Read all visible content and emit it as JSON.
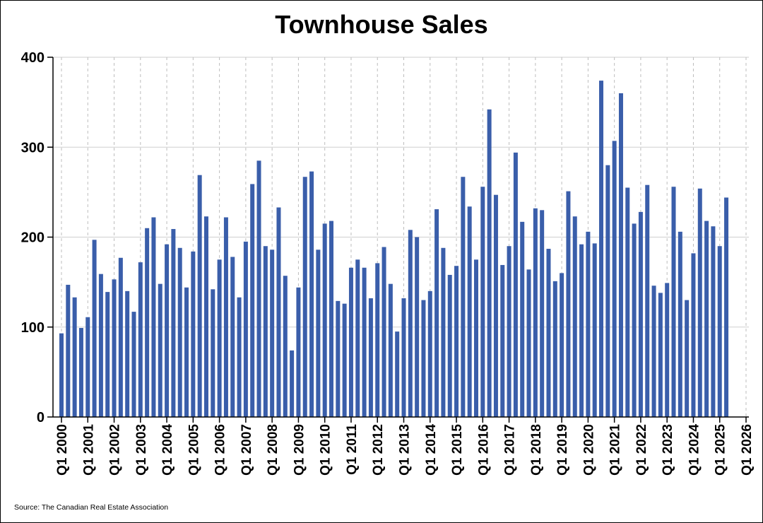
{
  "chart_data": {
    "type": "bar",
    "title": "Townhouse Sales",
    "source": "Source: The Canadian Real Estate Association",
    "bar_color": "#3A5EAA",
    "grid": true,
    "ylim": [
      0,
      400
    ],
    "yticks": [
      0,
      100,
      200,
      300,
      400
    ],
    "xlim": [
      0,
      104
    ],
    "xtick_labels": [
      "Q1 2000",
      "Q1 2001",
      "Q1 2002",
      "Q1 2003",
      "Q1 2004",
      "Q1 2005",
      "Q1 2006",
      "Q1 2007",
      "Q1 2008",
      "Q1 2009",
      "Q1 2010",
      "Q1 2011",
      "Q1 2012",
      "Q1 2013",
      "Q1 2014",
      "Q1 2015",
      "Q1 2016",
      "Q1 2017",
      "Q1 2018",
      "Q1 2019",
      "Q1 2020",
      "Q1 2021",
      "Q1 2022",
      "Q1 2023",
      "Q1 2024",
      "Q1 2025",
      "Q1 2026"
    ],
    "values": [
      93,
      147,
      133,
      99,
      111,
      197,
      159,
      139,
      153,
      177,
      140,
      117,
      172,
      210,
      222,
      148,
      192,
      209,
      188,
      144,
      184,
      269,
      223,
      142,
      175,
      222,
      178,
      133,
      195,
      259,
      285,
      190,
      186,
      233,
      157,
      74,
      144,
      267,
      273,
      186,
      215,
      218,
      129,
      126,
      166,
      175,
      166,
      132,
      171,
      189,
      148,
      95,
      132,
      208,
      200,
      130,
      140,
      231,
      188,
      158,
      168,
      267,
      234,
      175,
      256,
      342,
      247,
      169,
      190,
      294,
      217,
      164,
      232,
      230,
      187,
      151,
      160,
      251,
      223,
      192,
      206,
      193,
      374,
      280,
      307,
      360,
      255,
      215,
      228,
      258,
      146,
      138,
      149,
      256,
      206,
      130,
      182,
      254,
      218,
      212,
      190,
      244
    ]
  }
}
